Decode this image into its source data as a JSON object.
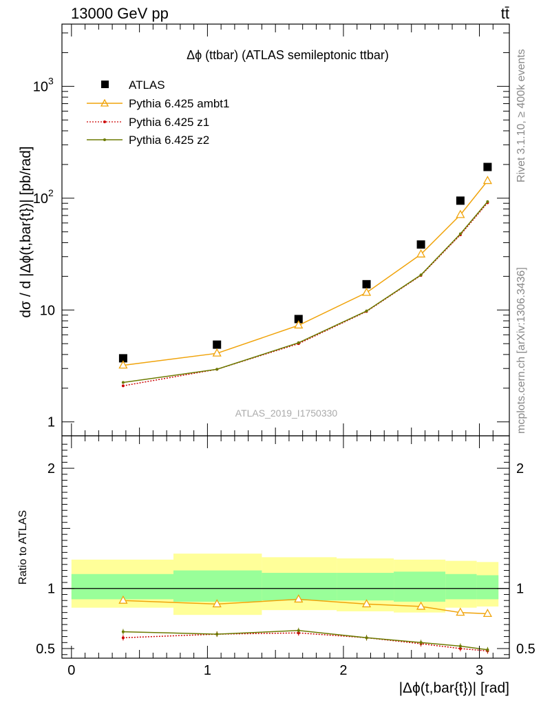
{
  "header": {
    "energy_label": "13000 GeV pp",
    "process_label": "tt̄"
  },
  "side_text": {
    "rivet": "Rivet 3.1.10, ≥ 400k events",
    "site": "mcplots.cern.ch [arXiv:1306.3436]"
  },
  "chart_data": [
    {
      "type": "line",
      "panel": "main",
      "title": "Δϕ (ttbar) (ATLAS semileptonic ttbar)",
      "watermark": "ATLAS_2019_I1750330",
      "ylabel": "dσ / d |Δϕ(t,bar{t})| [pb/rad]",
      "yscale": "log",
      "ylim": [
        0.75,
        3600
      ],
      "xlim": [
        -0.07,
        3.22
      ],
      "ytick_labels": [
        "1",
        "10",
        "10^2",
        "10^3"
      ],
      "legend_position": "top-left",
      "x": [
        0.38,
        1.07,
        1.67,
        2.17,
        2.57,
        2.86,
        3.06
      ],
      "series": [
        {
          "name": "ATLAS",
          "marker": "square",
          "color": "#000000",
          "values": [
            3.7,
            4.9,
            8.3,
            17.0,
            38.5,
            95,
            190
          ]
        },
        {
          "name": "Pythia 6.425 ambt1",
          "marker": "open-triangle",
          "color": "#f0a30a",
          "line": "solid",
          "values": [
            3.2,
            4.1,
            7.3,
            14.3,
            31.5,
            71,
            143
          ]
        },
        {
          "name": "Pythia 6.425 z1",
          "marker": "dot",
          "color": "#cc0000",
          "line": "dotted",
          "values": [
            2.1,
            2.95,
            5.0,
            9.7,
            20.4,
            47,
            91
          ]
        },
        {
          "name": "Pythia 6.425 z2",
          "marker": "dot",
          "color": "#6b7a00",
          "line": "solid",
          "values": [
            2.25,
            2.95,
            5.1,
            9.8,
            20.6,
            48,
            93
          ]
        }
      ]
    },
    {
      "type": "line",
      "panel": "ratio",
      "ylabel": "Ratio to ATLAS",
      "xlabel": "|Δϕ(t,bar{t})| [rad]",
      "ylim": [
        0.42,
        2.27
      ],
      "xlim": [
        -0.07,
        3.22
      ],
      "xtick_labels": [
        "0",
        "1",
        "2",
        "3"
      ],
      "ytick_labels": [
        "0.5",
        "1",
        "2"
      ],
      "bins": [
        [
          0.0,
          0.75
        ],
        [
          0.75,
          1.4
        ],
        [
          1.4,
          1.95
        ],
        [
          1.95,
          2.37
        ],
        [
          2.37,
          2.75
        ],
        [
          2.75,
          2.98
        ],
        [
          2.98,
          3.14
        ]
      ],
      "band_outer": [
        [
          0.84,
          1.24
        ],
        [
          0.78,
          1.29
        ],
        [
          0.82,
          1.26
        ],
        [
          0.81,
          1.25
        ],
        [
          0.8,
          1.24
        ],
        [
          0.84,
          1.23
        ],
        [
          0.85,
          1.22
        ]
      ],
      "band_inner": [
        [
          0.91,
          1.12
        ],
        [
          0.89,
          1.15
        ],
        [
          0.9,
          1.13
        ],
        [
          0.9,
          1.13
        ],
        [
          0.89,
          1.14
        ],
        [
          0.91,
          1.12
        ],
        [
          0.91,
          1.11
        ]
      ],
      "reference": 1,
      "x": [
        0.38,
        1.07,
        1.67,
        2.17,
        2.57,
        2.86,
        3.06
      ],
      "series": [
        {
          "name": "Pythia 6.425 ambt1",
          "color": "#f0a30a",
          "line": "solid",
          "marker": "open-triangle",
          "values": [
            0.9,
            0.87,
            0.91,
            0.87,
            0.85,
            0.8,
            0.79
          ]
        },
        {
          "name": "Pythia 6.425 z1",
          "color": "#cc0000",
          "line": "dotted",
          "marker": "dot",
          "values": [
            0.59,
            0.62,
            0.63,
            0.59,
            0.54,
            0.5,
            0.48
          ]
        },
        {
          "name": "Pythia 6.425 z2",
          "color": "#6b7a00",
          "line": "solid",
          "marker": "dot",
          "values": [
            0.64,
            0.62,
            0.65,
            0.59,
            0.55,
            0.52,
            0.49
          ]
        }
      ]
    }
  ],
  "colors": {
    "band_outer": "#ffff99",
    "band_inner": "#99ff99",
    "frame": "#000000"
  }
}
